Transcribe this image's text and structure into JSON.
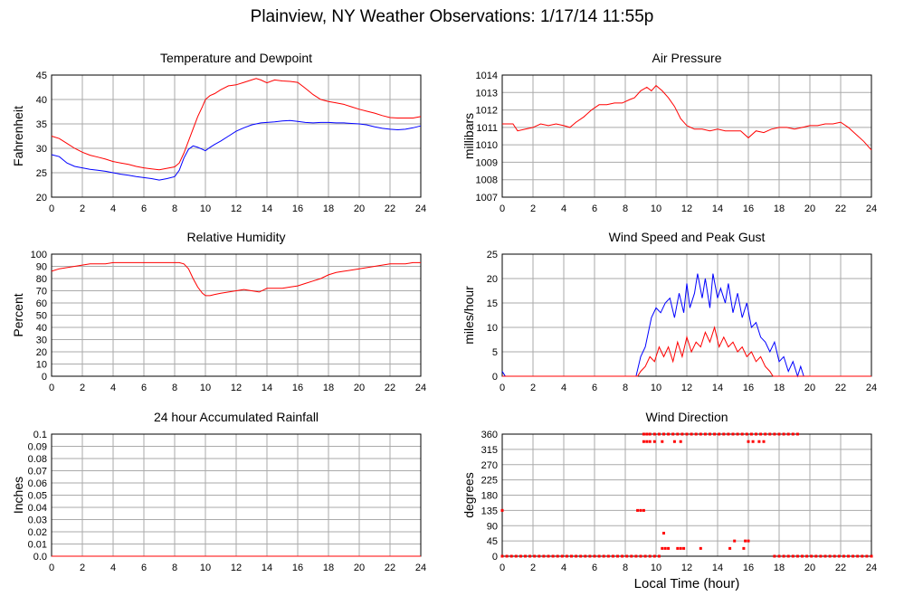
{
  "page_title": "Plainview, NY Weather Observations: 1/17/14 11:55p",
  "colors": {
    "red": "#ff0000",
    "blue": "#0000ff",
    "grid": "#aaaaaa",
    "axis": "#000000"
  },
  "chart_data": [
    {
      "id": "temperature",
      "type": "line",
      "title": "Temperature and Dewpoint",
      "xlabel": "",
      "ylabel": "Fahrenheit",
      "xlim": [
        0,
        24
      ],
      "ylim": [
        20,
        45
      ],
      "xticks": [
        0,
        2,
        4,
        6,
        8,
        10,
        12,
        14,
        16,
        18,
        20,
        22,
        24
      ],
      "yticks": [
        "20",
        "25",
        "30",
        "35",
        "40",
        "45"
      ],
      "grid": true,
      "series": [
        {
          "color": "#ff0000",
          "x": [
            0,
            0.5,
            1,
            1.5,
            2,
            2.5,
            3,
            3.5,
            4,
            4.5,
            5,
            5.5,
            6,
            6.5,
            7,
            7.5,
            8,
            8.3,
            8.6,
            8.9,
            9.2,
            9.5,
            9.8,
            10,
            10.3,
            10.6,
            11,
            11.5,
            12,
            12.5,
            13,
            13.3,
            13.6,
            14,
            14.5,
            15,
            15.5,
            16,
            16.5,
            17,
            17.5,
            18,
            18.5,
            19,
            19.5,
            20,
            20.5,
            21,
            21.5,
            22,
            22.5,
            23,
            23.5,
            24
          ],
          "y": [
            32.5,
            32,
            31,
            30,
            29.2,
            28.6,
            28.2,
            27.8,
            27.3,
            27,
            26.7,
            26.3,
            26,
            25.8,
            25.6,
            25.9,
            26.2,
            27,
            29,
            31.5,
            34,
            36.5,
            38.5,
            40,
            40.8,
            41.2,
            42,
            42.8,
            43,
            43.5,
            44,
            44.3,
            44,
            43.4,
            44,
            43.8,
            43.7,
            43.5,
            42.3,
            41,
            40,
            39.6,
            39.3,
            39,
            38.5,
            38,
            37.6,
            37.2,
            36.7,
            36.3,
            36.2,
            36.2,
            36.2,
            36.5
          ]
        },
        {
          "color": "#0000ff",
          "x": [
            0,
            0.5,
            1,
            1.5,
            2,
            2.5,
            3,
            3.5,
            4,
            4.5,
            5,
            5.5,
            6,
            6.5,
            7,
            7.5,
            8,
            8.3,
            8.6,
            8.9,
            9.2,
            9.5,
            9.8,
            10,
            10.3,
            10.6,
            11,
            11.5,
            12,
            12.5,
            13,
            13.3,
            13.6,
            14,
            14.5,
            15,
            15.5,
            16,
            16.5,
            17,
            17.5,
            18,
            18.5,
            19,
            19.5,
            20,
            20.5,
            21,
            21.5,
            22,
            22.5,
            23,
            23.5,
            24
          ],
          "y": [
            28.7,
            28.3,
            27,
            26.3,
            26,
            25.7,
            25.5,
            25.3,
            25,
            24.7,
            24.5,
            24.2,
            24,
            23.8,
            23.5,
            23.8,
            24.2,
            25.5,
            28,
            29.8,
            30.5,
            30.2,
            29.8,
            29.5,
            30.2,
            30.8,
            31.5,
            32.5,
            33.5,
            34.2,
            34.8,
            35,
            35.2,
            35.3,
            35.4,
            35.6,
            35.7,
            35.5,
            35.3,
            35.2,
            35.3,
            35.3,
            35.2,
            35.2,
            35.1,
            35,
            34.8,
            34.4,
            34.1,
            33.9,
            33.8,
            33.9,
            34.2,
            34.6
          ]
        }
      ]
    },
    {
      "id": "pressure",
      "type": "line",
      "title": "Air Pressure",
      "xlabel": "",
      "ylabel": "millibars",
      "xlim": [
        0,
        24
      ],
      "ylim": [
        1007,
        1014
      ],
      "xticks": [
        0,
        2,
        4,
        6,
        8,
        10,
        12,
        14,
        16,
        18,
        20,
        22,
        24
      ],
      "yticks": [
        "1007",
        "1008",
        "1009",
        "1010",
        "1011",
        "1012",
        "1013",
        "1014"
      ],
      "grid": true,
      "series": [
        {
          "color": "#ff0000",
          "x": [
            0,
            0.7,
            1,
            1.5,
            2,
            2.5,
            3,
            3.5,
            4,
            4.4,
            4.8,
            5.3,
            5.8,
            6.3,
            6.8,
            7.3,
            7.8,
            8.3,
            8.6,
            9,
            9.4,
            9.7,
            10,
            10.4,
            10.8,
            11.2,
            11.6,
            12,
            12.5,
            13,
            13.5,
            14,
            14.5,
            15,
            15.5,
            16,
            16.5,
            17,
            17.5,
            18,
            18.5,
            19,
            19.5,
            20,
            20.5,
            21,
            21.5,
            22,
            22.5,
            23,
            23.5,
            24
          ],
          "y": [
            1011.2,
            1011.2,
            1010.8,
            1010.9,
            1011,
            1011.2,
            1011.1,
            1011.2,
            1011.1,
            1011,
            1011.3,
            1011.6,
            1012,
            1012.3,
            1012.3,
            1012.4,
            1012.4,
            1012.6,
            1012.7,
            1013.1,
            1013.3,
            1013.1,
            1013.4,
            1013.1,
            1012.7,
            1012.2,
            1011.5,
            1011.1,
            1010.9,
            1010.9,
            1010.8,
            1010.9,
            1010.8,
            1010.8,
            1010.8,
            1010.4,
            1010.8,
            1010.7,
            1010.9,
            1011,
            1011,
            1010.9,
            1011,
            1011.1,
            1011.1,
            1011.2,
            1011.2,
            1011.3,
            1011,
            1010.6,
            1010.2,
            1009.7
          ]
        }
      ]
    },
    {
      "id": "humidity",
      "type": "line",
      "title": "Relative Humidity",
      "xlabel": "",
      "ylabel": "Percent",
      "xlim": [
        0,
        24
      ],
      "ylim": [
        0,
        100
      ],
      "xticks": [
        0,
        2,
        4,
        6,
        8,
        10,
        12,
        14,
        16,
        18,
        20,
        22,
        24
      ],
      "yticks": [
        "0",
        "10",
        "20",
        "30",
        "40",
        "50",
        "60",
        "70",
        "80",
        "90",
        "100"
      ],
      "grid": true,
      "series": [
        {
          "color": "#ff0000",
          "x": [
            0,
            0.5,
            1,
            1.5,
            2,
            2.5,
            3,
            3.5,
            4,
            5,
            6,
            7,
            8,
            8.3,
            8.6,
            8.9,
            9.2,
            9.5,
            9.8,
            10,
            10.3,
            10.6,
            11,
            11.5,
            12,
            12.5,
            13,
            13.5,
            14,
            14.5,
            15,
            15.5,
            16,
            16.5,
            17,
            17.5,
            18,
            18.5,
            19,
            19.5,
            20,
            20.5,
            21,
            21.5,
            22,
            22.5,
            23,
            23.5,
            24
          ],
          "y": [
            86,
            88,
            89,
            90,
            91,
            92,
            92,
            92,
            93,
            93,
            93,
            93,
            93,
            93,
            92,
            88,
            80,
            73,
            68,
            66,
            66,
            67,
            68,
            69,
            70,
            71,
            70,
            69,
            72,
            72,
            72,
            73,
            74,
            76,
            78,
            80,
            83,
            85,
            86,
            87,
            88,
            89,
            90,
            91,
            92,
            92,
            92,
            93,
            93
          ]
        }
      ]
    },
    {
      "id": "wind-speed",
      "type": "line",
      "title": "Wind Speed and Peak Gust",
      "xlabel": "",
      "ylabel": "miles/hour",
      "xlim": [
        0,
        24
      ],
      "ylim": [
        0,
        25
      ],
      "xticks": [
        0,
        2,
        4,
        6,
        8,
        10,
        12,
        14,
        16,
        18,
        20,
        22,
        24
      ],
      "yticks": [
        "0",
        "5",
        "10",
        "15",
        "20",
        "25"
      ],
      "grid": true,
      "series": [
        {
          "color": "#0000ff",
          "x": [
            0,
            0.1,
            0.2,
            0.3,
            8,
            8.7,
            9,
            9.3,
            9.5,
            9.7,
            10,
            10.3,
            10.6,
            10.9,
            11.2,
            11.5,
            11.8,
            12,
            12.2,
            12.5,
            12.7,
            13,
            13.2,
            13.5,
            13.7,
            14,
            14.2,
            14.5,
            14.7,
            15,
            15.3,
            15.6,
            15.9,
            16.2,
            16.5,
            16.8,
            17.1,
            17.4,
            17.7,
            18,
            18.3,
            18.6,
            18.9,
            19.2,
            19.4,
            19.6,
            24
          ],
          "y": [
            1,
            0.5,
            0,
            0,
            0,
            0,
            4,
            6,
            9,
            12,
            14,
            13,
            15,
            16,
            12,
            17,
            13,
            19,
            14,
            17,
            21,
            16,
            20,
            14,
            21,
            16,
            18,
            15,
            19,
            13,
            17,
            12,
            15,
            10,
            11,
            8,
            7,
            5,
            7,
            3,
            4,
            1,
            3,
            0,
            2,
            0,
            0
          ]
        },
        {
          "color": "#ff0000",
          "x": [
            0,
            8,
            8.8,
            9,
            9.3,
            9.6,
            9.9,
            10.2,
            10.5,
            10.8,
            11.1,
            11.4,
            11.7,
            12,
            12.3,
            12.6,
            12.9,
            13.2,
            13.5,
            13.8,
            14.1,
            14.4,
            14.7,
            15,
            15.3,
            15.6,
            15.9,
            16.2,
            16.5,
            16.8,
            17.1,
            17.4,
            17.6,
            24
          ],
          "y": [
            0,
            0,
            0,
            1,
            2,
            4,
            3,
            6,
            4,
            6,
            3,
            7,
            4,
            8,
            5,
            7,
            6,
            9,
            7,
            10,
            6,
            8,
            6,
            7,
            5,
            6,
            4,
            5,
            3,
            4,
            2,
            1,
            0,
            0
          ]
        }
      ]
    },
    {
      "id": "rainfall",
      "type": "line",
      "title": "24 hour Accumulated Rainfall",
      "xlabel": "",
      "ylabel": "Inches",
      "xlim": [
        0,
        24
      ],
      "ylim": [
        0,
        0.1
      ],
      "xticks": [
        0,
        2,
        4,
        6,
        8,
        10,
        12,
        14,
        16,
        18,
        20,
        22,
        24
      ],
      "yticks": [
        "0.0",
        "0.01",
        "0.02",
        "0.03",
        "0.04",
        "0.05",
        "0.06",
        "0.07",
        "0.08",
        "0.09",
        "0.1"
      ],
      "grid": true,
      "series": [
        {
          "color": "#ff0000",
          "x": [
            0,
            24
          ],
          "y": [
            0,
            0
          ]
        }
      ]
    },
    {
      "id": "wind-direction",
      "type": "scatter",
      "title": "Wind Direction",
      "xlabel": "Local Time (hour)",
      "ylabel": "degrees",
      "xlim": [
        0,
        24
      ],
      "ylim": [
        0,
        360
      ],
      "xticks": [
        0,
        2,
        4,
        6,
        8,
        10,
        12,
        14,
        16,
        18,
        20,
        22,
        24
      ],
      "yticks": [
        "0",
        "45",
        "90",
        "135",
        "180",
        "225",
        "270",
        "315",
        "360"
      ],
      "grid": true,
      "series": [
        {
          "color": "#ff0000",
          "x": [
            0,
            0.3,
            0.6,
            0.9,
            1.2,
            1.5,
            1.8,
            2.1,
            2.4,
            2.7,
            3,
            3.3,
            3.6,
            3.9,
            4.2,
            4.5,
            4.8,
            5.1,
            5.4,
            5.7,
            6,
            6.3,
            6.6,
            6.9,
            7.2,
            7.5,
            7.8,
            8.1,
            8.4,
            8.7,
            9,
            9.3,
            9.6,
            9.9,
            10.2,
            17.7,
            18,
            18.3,
            18.6,
            18.9,
            19.2,
            19.5,
            19.8,
            20.1,
            20.4,
            20.7,
            21,
            21.3,
            21.6,
            21.9,
            22.2,
            22.5,
            22.8,
            23.1,
            23.4,
            23.7,
            24,
            0,
            8.8,
            9,
            9.2,
            9.2,
            9.4,
            9.6,
            9.9,
            10.2,
            10.5,
            10.8,
            11.1,
            11.4,
            11.7,
            12,
            12.3,
            12.6,
            12.9,
            13.2,
            13.5,
            13.8,
            14.1,
            14.4,
            14.7,
            15,
            15.3,
            15.6,
            15.9,
            16.2,
            16.5,
            16.8,
            17.1,
            17.4,
            17.7,
            18,
            18.3,
            18.6,
            18.9,
            19.2,
            9.2,
            9.4,
            9.6,
            9.9,
            10.4,
            11.2,
            11.6,
            16,
            16.3,
            16.7,
            17,
            10.4,
            10.6,
            10.8,
            11.4,
            11.6,
            11.8,
            12.9,
            14.8,
            15.7,
            10.5,
            15.1,
            15.8,
            16
          ],
          "y": [
            0,
            0,
            0,
            0,
            0,
            0,
            0,
            0,
            0,
            0,
            0,
            0,
            0,
            0,
            0,
            0,
            0,
            0,
            0,
            0,
            0,
            0,
            0,
            0,
            0,
            0,
            0,
            0,
            0,
            0,
            0,
            0,
            0,
            0,
            0,
            0,
            0,
            0,
            0,
            0,
            0,
            0,
            0,
            0,
            0,
            0,
            0,
            0,
            0,
            0,
            0,
            0,
            0,
            0,
            0,
            0,
            0,
            135,
            135,
            135,
            135,
            360,
            360,
            360,
            360,
            360,
            360,
            360,
            360,
            360,
            360,
            360,
            360,
            360,
            360,
            360,
            360,
            360,
            360,
            360,
            360,
            360,
            360,
            360,
            360,
            360,
            360,
            360,
            360,
            360,
            360,
            360,
            360,
            360,
            360,
            360,
            338,
            338,
            338,
            338,
            338,
            338,
            338,
            338,
            338,
            338,
            338,
            23,
            23,
            23,
            23,
            23,
            23,
            23,
            23,
            23,
            68,
            45,
            45,
            45
          ]
        }
      ]
    }
  ]
}
